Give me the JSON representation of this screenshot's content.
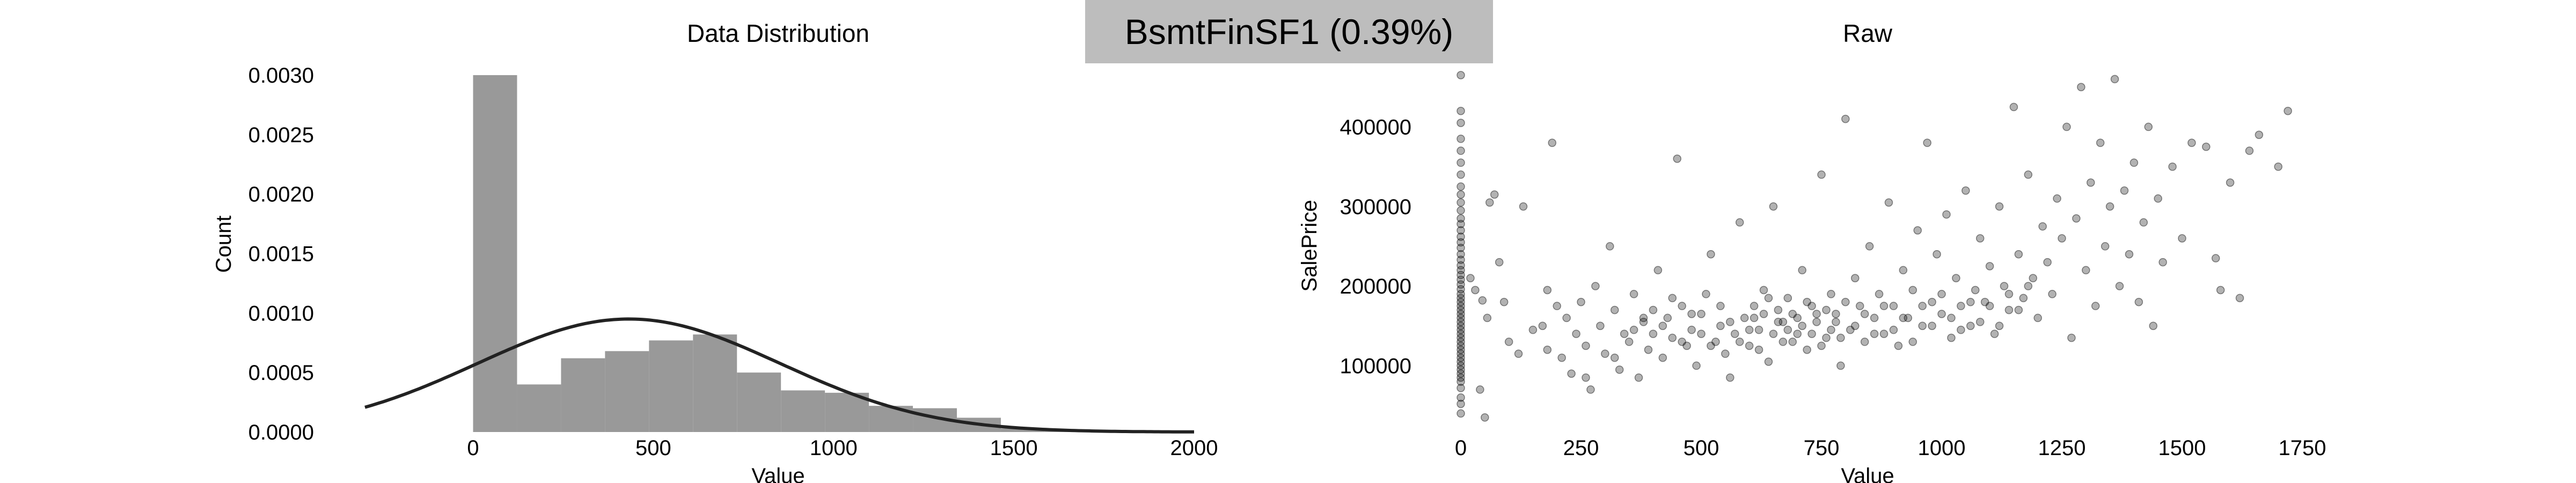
{
  "header": {
    "title": "BsmtFinSF1 (0.39%)"
  },
  "colors": {
    "bar": "#999999",
    "curve": "#222222",
    "point": "#000000",
    "title_bg": "#bdbdbd"
  },
  "chart_data": [
    {
      "type": "bar",
      "subtype": "histogram with normal density curve",
      "title": "Data Distribution",
      "xlabel": "Value",
      "ylabel": "Count",
      "xlim": [
        -300,
        2000
      ],
      "ylim": [
        0,
        0.003
      ],
      "x_ticks": [
        "0",
        "500",
        "1000",
        "1500",
        "2000"
      ],
      "y_ticks": [
        "0.0000",
        "0.0005",
        "0.0010",
        "0.0015",
        "0.0020",
        "0.0025",
        "0.0030"
      ],
      "bin_edges": [
        0,
        122,
        244,
        366,
        488,
        610,
        732,
        854,
        976,
        1098,
        1220,
        1342,
        1464,
        1586,
        1708
      ],
      "values": [
        0.003,
        0.0004,
        0.00062,
        0.00068,
        0.00077,
        0.00082,
        0.0005,
        0.00035,
        0.00033,
        0.00022,
        0.0002,
        0.00012,
        3e-05,
        1e-05
      ],
      "normal_fit": {
        "mean": 432,
        "sd": 420
      },
      "grid": false,
      "legend": "none"
    },
    {
      "type": "scatter",
      "title": "Raw",
      "xlabel": "Value",
      "ylabel": "SalePrice",
      "xlim": [
        0,
        1750
      ],
      "ylim": [
        34900,
        465000
      ],
      "x_ticks": [
        "0",
        "250",
        "500",
        "750",
        "1000",
        "1250",
        "1500",
        "1750"
      ],
      "y_ticks": [
        "100000",
        "200000",
        "300000",
        "400000"
      ],
      "grid": false,
      "legend": "none",
      "points": [
        [
          0,
          465000
        ],
        [
          0,
          420000
        ],
        [
          0,
          405000
        ],
        [
          0,
          385000
        ],
        [
          0,
          370000
        ],
        [
          0,
          355000
        ],
        [
          0,
          340000
        ],
        [
          0,
          325000
        ],
        [
          0,
          315000
        ],
        [
          0,
          305000
        ],
        [
          0,
          295000
        ],
        [
          0,
          285000
        ],
        [
          0,
          278000
        ],
        [
          0,
          270000
        ],
        [
          0,
          262000
        ],
        [
          0,
          255000
        ],
        [
          0,
          248000
        ],
        [
          0,
          240000
        ],
        [
          0,
          233000
        ],
        [
          0,
          226000
        ],
        [
          0,
          220000
        ],
        [
          0,
          214000
        ],
        [
          0,
          208000
        ],
        [
          0,
          202000
        ],
        [
          0,
          196000
        ],
        [
          0,
          190000
        ],
        [
          0,
          185000
        ],
        [
          0,
          180000
        ],
        [
          0,
          175000
        ],
        [
          0,
          170000
        ],
        [
          0,
          165000
        ],
        [
          0,
          160000
        ],
        [
          0,
          155000
        ],
        [
          0,
          150000
        ],
        [
          0,
          145000
        ],
        [
          0,
          140000
        ],
        [
          0,
          135000
        ],
        [
          0,
          130000
        ],
        [
          0,
          125000
        ],
        [
          0,
          120000
        ],
        [
          0,
          115000
        ],
        [
          0,
          110000
        ],
        [
          0,
          105000
        ],
        [
          0,
          100000
        ],
        [
          0,
          95000
        ],
        [
          0,
          90000
        ],
        [
          0,
          85000
        ],
        [
          0,
          80000
        ],
        [
          0,
          72000
        ],
        [
          0,
          60000
        ],
        [
          0,
          52000
        ],
        [
          0,
          40000
        ],
        [
          20,
          210000
        ],
        [
          30,
          195000
        ],
        [
          45,
          182000
        ],
        [
          55,
          160000
        ],
        [
          60,
          305000
        ],
        [
          70,
          315000
        ],
        [
          40,
          70000
        ],
        [
          50,
          35000
        ],
        [
          80,
          230000
        ],
        [
          90,
          180000
        ],
        [
          100,
          130000
        ],
        [
          120,
          115000
        ],
        [
          130,
          300000
        ],
        [
          150,
          145000
        ],
        [
          170,
          150000
        ],
        [
          180,
          120000
        ],
        [
          190,
          380000
        ],
        [
          210,
          110000
        ],
        [
          220,
          160000
        ],
        [
          230,
          90000
        ],
        [
          240,
          140000
        ],
        [
          250,
          180000
        ],
        [
          260,
          125000
        ],
        [
          270,
          70000
        ],
        [
          280,
          200000
        ],
        [
          290,
          150000
        ],
        [
          300,
          115000
        ],
        [
          310,
          250000
        ],
        [
          320,
          170000
        ],
        [
          330,
          95000
        ],
        [
          340,
          140000
        ],
        [
          350,
          130000
        ],
        [
          360,
          190000
        ],
        [
          370,
          85000
        ],
        [
          380,
          155000
        ],
        [
          390,
          120000
        ],
        [
          400,
          140000
        ],
        [
          410,
          220000
        ],
        [
          420,
          110000
        ],
        [
          430,
          160000
        ],
        [
          440,
          135000
        ],
        [
          450,
          360000
        ],
        [
          460,
          175000
        ],
        [
          470,
          125000
        ],
        [
          480,
          145000
        ],
        [
          490,
          100000
        ],
        [
          500,
          165000
        ],
        [
          510,
          190000
        ],
        [
          520,
          240000
        ],
        [
          530,
          130000
        ],
        [
          540,
          150000
        ],
        [
          550,
          115000
        ],
        [
          560,
          85000
        ],
        [
          570,
          140000
        ],
        [
          580,
          280000
        ],
        [
          590,
          160000
        ],
        [
          600,
          125000
        ],
        [
          610,
          175000
        ],
        [
          620,
          145000
        ],
        [
          630,
          195000
        ],
        [
          640,
          105000
        ],
        [
          650,
          300000
        ],
        [
          660,
          155000
        ],
        [
          670,
          130000
        ],
        [
          680,
          185000
        ],
        [
          690,
          165000
        ],
        [
          700,
          140000
        ],
        [
          710,
          220000
        ],
        [
          720,
          120000
        ],
        [
          730,
          175000
        ],
        [
          740,
          155000
        ],
        [
          750,
          340000
        ],
        [
          760,
          135000
        ],
        [
          770,
          190000
        ],
        [
          780,
          165000
        ],
        [
          790,
          100000
        ],
        [
          800,
          410000
        ],
        [
          810,
          145000
        ],
        [
          820,
          210000
        ],
        [
          830,
          175000
        ],
        [
          840,
          130000
        ],
        [
          850,
          250000
        ],
        [
          860,
          160000
        ],
        [
          870,
          190000
        ],
        [
          880,
          140000
        ],
        [
          890,
          305000
        ],
        [
          900,
          175000
        ],
        [
          910,
          125000
        ],
        [
          920,
          220000
        ],
        [
          930,
          160000
        ],
        [
          940,
          195000
        ],
        [
          950,
          270000
        ],
        [
          960,
          150000
        ],
        [
          970,
          380000
        ],
        [
          980,
          180000
        ],
        [
          990,
          240000
        ],
        [
          1000,
          165000
        ],
        [
          1010,
          290000
        ],
        [
          1020,
          135000
        ],
        [
          1030,
          210000
        ],
        [
          1040,
          175000
        ],
        [
          1050,
          320000
        ],
        [
          1060,
          150000
        ],
        [
          1070,
          195000
        ],
        [
          1080,
          260000
        ],
        [
          1090,
          180000
        ],
        [
          1100,
          225000
        ],
        [
          1110,
          140000
        ],
        [
          1120,
          300000
        ],
        [
          1130,
          200000
        ],
        [
          1140,
          170000
        ],
        [
          1150,
          425000
        ],
        [
          1160,
          240000
        ],
        [
          1170,
          185000
        ],
        [
          1180,
          340000
        ],
        [
          1190,
          210000
        ],
        [
          1200,
          160000
        ],
        [
          1210,
          275000
        ],
        [
          1220,
          230000
        ],
        [
          1230,
          190000
        ],
        [
          1240,
          310000
        ],
        [
          1250,
          260000
        ],
        [
          1260,
          400000
        ],
        [
          1270,
          135000
        ],
        [
          1280,
          285000
        ],
        [
          1290,
          450000
        ],
        [
          1300,
          220000
        ],
        [
          1310,
          330000
        ],
        [
          1320,
          175000
        ],
        [
          1330,
          380000
        ],
        [
          1340,
          250000
        ],
        [
          1350,
          300000
        ],
        [
          1360,
          460000
        ],
        [
          1370,
          200000
        ],
        [
          1380,
          320000
        ],
        [
          1390,
          240000
        ],
        [
          1400,
          355000
        ],
        [
          1410,
          180000
        ],
        [
          1420,
          280000
        ],
        [
          1430,
          400000
        ],
        [
          1440,
          150000
        ],
        [
          1450,
          310000
        ],
        [
          1460,
          230000
        ],
        [
          1480,
          350000
        ],
        [
          1500,
          260000
        ],
        [
          1520,
          380000
        ],
        [
          1550,
          375000
        ],
        [
          1570,
          235000
        ],
        [
          1580,
          195000
        ],
        [
          1600,
          330000
        ],
        [
          1620,
          185000
        ],
        [
          1640,
          370000
        ],
        [
          1660,
          390000
        ],
        [
          1700,
          350000
        ],
        [
          1720,
          420000
        ],
        [
          180,
          195000
        ],
        [
          200,
          175000
        ],
        [
          260,
          85000
        ],
        [
          320,
          110000
        ],
        [
          360,
          145000
        ],
        [
          380,
          160000
        ],
        [
          400,
          170000
        ],
        [
          420,
          150000
        ],
        [
          440,
          185000
        ],
        [
          460,
          130000
        ],
        [
          480,
          165000
        ],
        [
          500,
          140000
        ],
        [
          520,
          125000
        ],
        [
          540,
          175000
        ],
        [
          560,
          155000
        ],
        [
          580,
          130000
        ],
        [
          600,
          145000
        ],
        [
          610,
          160000
        ],
        [
          620,
          120000
        ],
        [
          630,
          165000
        ],
        [
          640,
          185000
        ],
        [
          650,
          140000
        ],
        [
          660,
          170000
        ],
        [
          670,
          155000
        ],
        [
          680,
          145000
        ],
        [
          690,
          130000
        ],
        [
          700,
          160000
        ],
        [
          710,
          150000
        ],
        [
          720,
          180000
        ],
        [
          730,
          140000
        ],
        [
          740,
          165000
        ],
        [
          750,
          125000
        ],
        [
          760,
          170000
        ],
        [
          770,
          145000
        ],
        [
          780,
          155000
        ],
        [
          790,
          135000
        ],
        [
          800,
          180000
        ],
        [
          820,
          150000
        ],
        [
          840,
          165000
        ],
        [
          860,
          140000
        ],
        [
          880,
          175000
        ],
        [
          900,
          145000
        ],
        [
          920,
          160000
        ],
        [
          940,
          130000
        ],
        [
          960,
          175000
        ],
        [
          980,
          150000
        ],
        [
          1000,
          190000
        ],
        [
          1020,
          160000
        ],
        [
          1040,
          145000
        ],
        [
          1060,
          180000
        ],
        [
          1080,
          155000
        ],
        [
          1100,
          175000
        ],
        [
          1120,
          150000
        ],
        [
          1140,
          190000
        ],
        [
          1160,
          170000
        ],
        [
          1180,
          200000
        ]
      ]
    }
  ]
}
